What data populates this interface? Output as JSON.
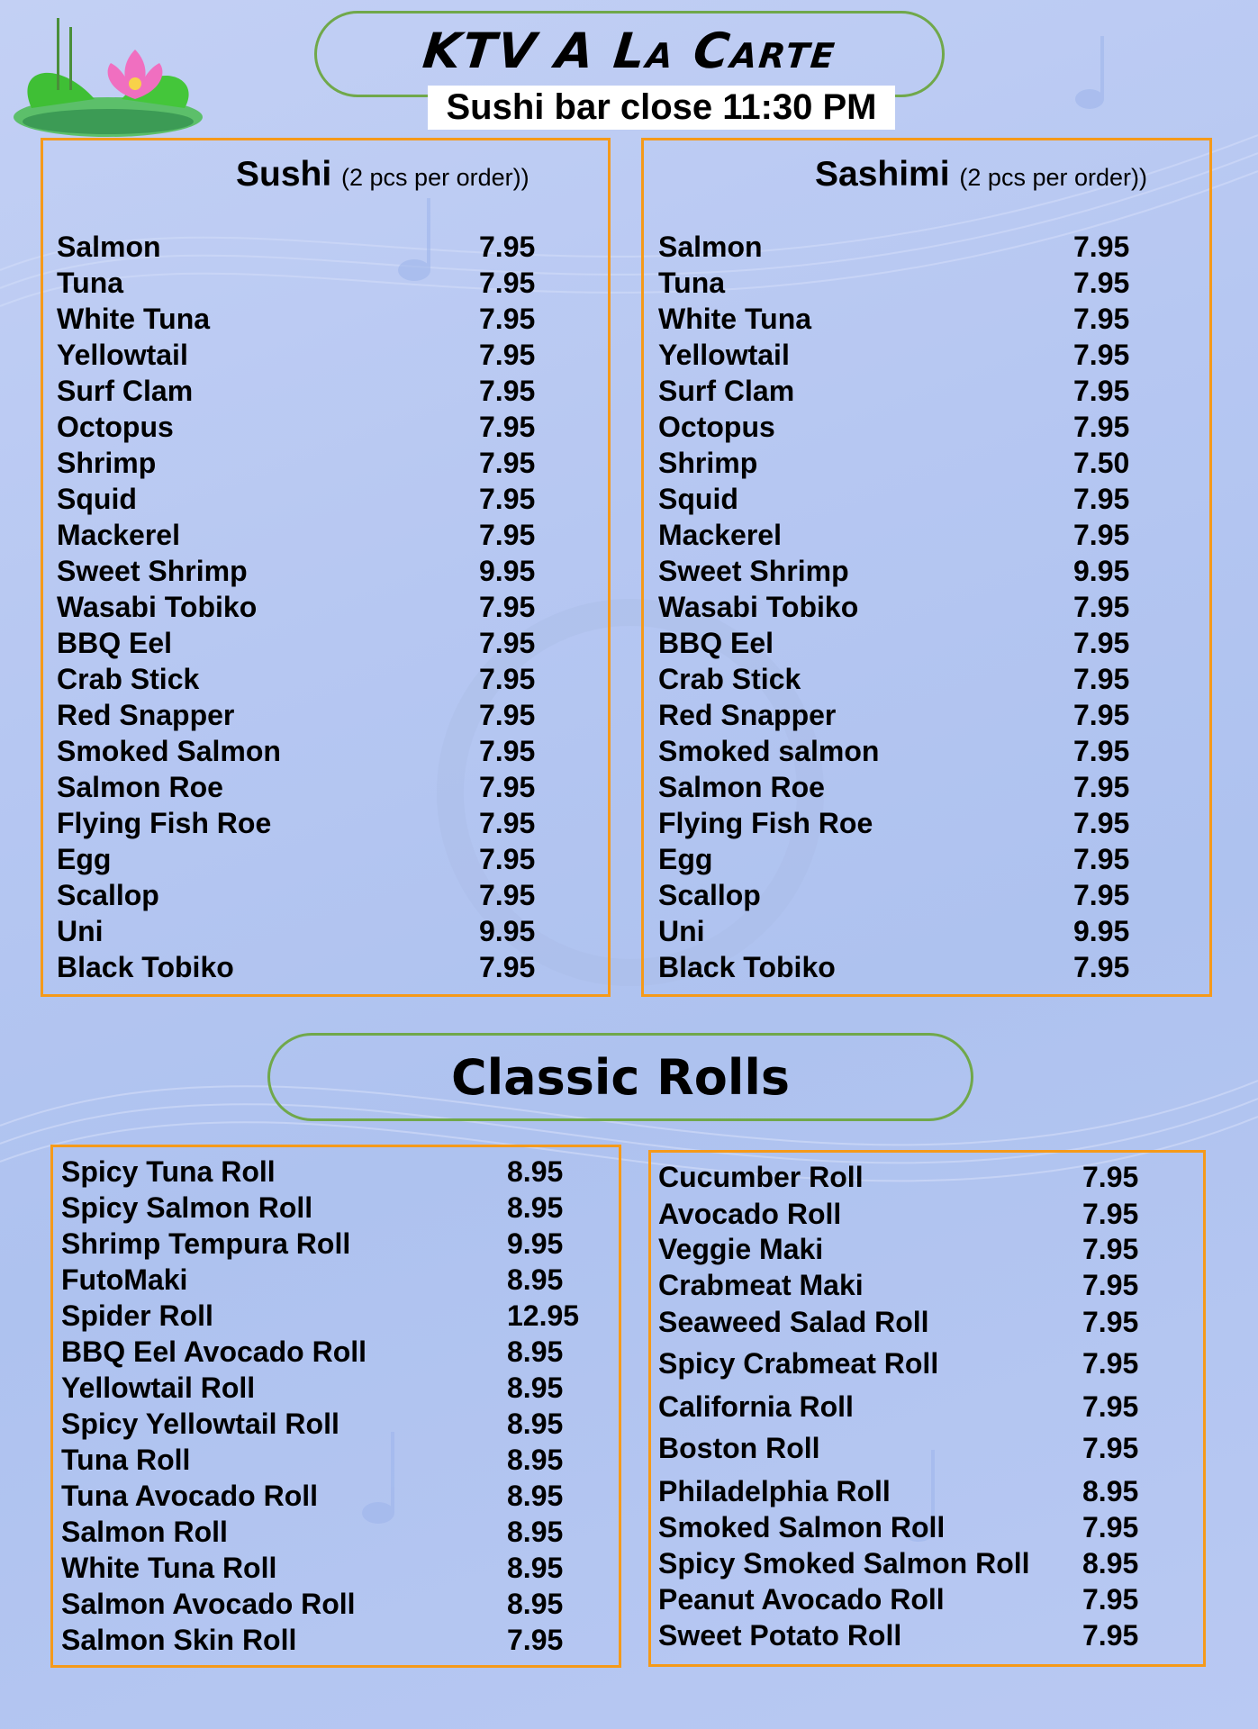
{
  "header": {
    "title": "KTV A La Carte",
    "notice": "Sushi bar close 11:30 PM"
  },
  "colors": {
    "background": "#b6c7f2",
    "box_border": "#f59a1a",
    "pill_border": "#70a84a"
  },
  "sushi": {
    "title": "Sushi",
    "note": "(2 pcs per order))",
    "items": [
      {
        "name": "Salmon",
        "price": "7.95"
      },
      {
        "name": "Tuna",
        "price": "7.95"
      },
      {
        "name": "White Tuna",
        "price": "7.95"
      },
      {
        "name": "Yellowtail",
        "price": "7.95"
      },
      {
        "name": "Surf Clam",
        "price": "7.95"
      },
      {
        "name": "Octopus",
        "price": "7.95"
      },
      {
        "name": "Shrimp",
        "price": "7.95"
      },
      {
        "name": "Squid",
        "price": "7.95"
      },
      {
        "name": "Mackerel",
        "price": "7.95"
      },
      {
        "name": "Sweet Shrimp",
        "price": "9.95"
      },
      {
        "name": "Wasabi Tobiko",
        "price": "7.95"
      },
      {
        "name": "BBQ Eel",
        "price": "7.95"
      },
      {
        "name": "Crab Stick",
        "price": "7.95"
      },
      {
        "name": "Red Snapper",
        "price": "7.95"
      },
      {
        "name": "Smoked Salmon",
        "price": "7.95"
      },
      {
        "name": "Salmon Roe",
        "price": "7.95"
      },
      {
        "name": "Flying Fish Roe",
        "price": "7.95"
      },
      {
        "name": "Egg",
        "price": "7.95"
      },
      {
        "name": "Scallop",
        "price": "7.95"
      },
      {
        "name": "Uni",
        "price": "9.95"
      },
      {
        "name": "Black Tobiko",
        "price": "7.95"
      }
    ]
  },
  "sashimi": {
    "title": "Sashimi",
    "note": "(2 pcs per order))",
    "items": [
      {
        "name": "Salmon",
        "price": "7.95"
      },
      {
        "name": "Tuna",
        "price": "7.95"
      },
      {
        "name": "White Tuna",
        "price": "7.95"
      },
      {
        "name": "Yellowtail",
        "price": "7.95"
      },
      {
        "name": "Surf Clam",
        "price": "7.95"
      },
      {
        "name": "Octopus",
        "price": "7.95"
      },
      {
        "name": "Shrimp",
        "price": "7.50"
      },
      {
        "name": "Squid",
        "price": "7.95"
      },
      {
        "name": "Mackerel",
        "price": "7.95"
      },
      {
        "name": "Sweet Shrimp",
        "price": "9.95"
      },
      {
        "name": "Wasabi Tobiko",
        "price": "7.95"
      },
      {
        "name": "BBQ Eel",
        "price": "7.95"
      },
      {
        "name": "Crab Stick",
        "price": "7.95"
      },
      {
        "name": "Red Snapper",
        "price": "7.95"
      },
      {
        "name": "Smoked salmon",
        "price": "7.95"
      },
      {
        "name": "Salmon Roe",
        "price": "7.95"
      },
      {
        "name": "Flying Fish Roe",
        "price": "7.95"
      },
      {
        "name": "Egg",
        "price": "7.95"
      },
      {
        "name": "Scallop",
        "price": "7.95"
      },
      {
        "name": "Uni",
        "price": "9.95"
      },
      {
        "name": "Black Tobiko",
        "price": "7.95"
      }
    ]
  },
  "classic_rolls": {
    "title": "Classic Rolls",
    "left": [
      {
        "name": "Spicy Tuna Roll",
        "price": "8.95"
      },
      {
        "name": "Spicy Salmon Roll",
        "price": "8.95"
      },
      {
        "name": "Shrimp Tempura Roll",
        "price": "9.95"
      },
      {
        "name": "FutoMaki",
        "price": "8.95"
      },
      {
        "name": "Spider Roll",
        "price": "12.95"
      },
      {
        "name": "BBQ Eel Avocado Roll",
        "price": "8.95"
      },
      {
        "name": "Yellowtail Roll",
        "price": "8.95"
      },
      {
        "name": "Spicy Yellowtail Roll",
        "price": "8.95"
      },
      {
        "name": "Tuna Roll",
        "price": "8.95"
      },
      {
        "name": "Tuna Avocado Roll",
        "price": "8.95"
      },
      {
        "name": "Salmon  Roll",
        "price": "8.95"
      },
      {
        "name": "White Tuna Roll",
        "price": "8.95"
      },
      {
        "name": "Salmon Avocado Roll",
        "price": "8.95"
      },
      {
        "name": "Salmon Skin Roll",
        "price": "7.95"
      }
    ],
    "right": [
      {
        "name": "Cucumber Roll",
        "price": "7.95"
      },
      {
        "name": "Avocado Roll",
        "price": "7.95"
      },
      {
        "name": "Veggie Maki",
        "price": "7.95"
      },
      {
        "name": "Crabmeat Maki",
        "price": "7.95"
      },
      {
        "name": "Seaweed Salad Roll",
        "price": "7.95"
      },
      {
        "name": "Spicy Crabmeat Roll",
        "price": "7.95"
      },
      {
        "name": "California Roll",
        "price": "7.95"
      },
      {
        "name": "Boston Roll",
        "price": "7.95"
      },
      {
        "name": "Philadelphia Roll",
        "price": "8.95"
      },
      {
        "name": "Smoked Salmon Roll",
        "price": "7.95"
      },
      {
        "name": "Spicy Smoked Salmon Roll",
        "price": "8.95"
      },
      {
        "name": "Peanut Avocado Roll",
        "price": "7.95"
      },
      {
        "name": "Sweet Potato Roll",
        "price": "7.95"
      }
    ]
  }
}
